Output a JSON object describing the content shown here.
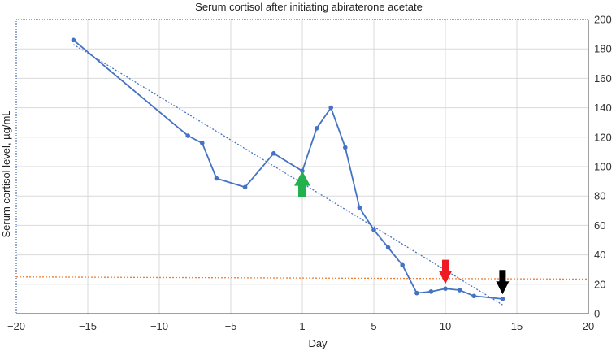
{
  "chart_data": {
    "type": "line",
    "title": "Serum cortisol after initiating abiraterone acetate",
    "xlabel": "Day",
    "ylabel": "Serum cortisol level, µg/mL",
    "xlim": [
      -20,
      20
    ],
    "ylim": [
      0,
      200
    ],
    "x_ticks": [
      "−20",
      "−15",
      "−10",
      "−5",
      "1",
      "5",
      "10",
      "15",
      "20"
    ],
    "y_ticks": [
      "0",
      "20",
      "40",
      "60",
      "80",
      "100",
      "120",
      "140",
      "160",
      "180",
      "200"
    ],
    "y_axis_side": "right",
    "grid": true,
    "series": [
      {
        "color": "#4472c4",
        "points": [
          {
            "x": -16,
            "y": 186
          },
          {
            "x": -8,
            "y": 121
          },
          {
            "x": -7,
            "y": 116
          },
          {
            "x": -6,
            "y": 92
          },
          {
            "x": -4,
            "y": 86
          },
          {
            "x": -2,
            "y": 109
          },
          {
            "x": 0,
            "y": 97
          },
          {
            "x": 1,
            "y": 126
          },
          {
            "x": 2,
            "y": 140
          },
          {
            "x": 3,
            "y": 113
          },
          {
            "x": 4,
            "y": 72
          },
          {
            "x": 5,
            "y": 57
          },
          {
            "x": 6,
            "y": 45
          },
          {
            "x": 7,
            "y": 33
          },
          {
            "x": 8,
            "y": 14
          },
          {
            "x": 9,
            "y": 15
          },
          {
            "x": 10,
            "y": 17
          },
          {
            "x": 11,
            "y": 16
          },
          {
            "x": 12,
            "y": 12
          },
          {
            "x": 14,
            "y": 10
          }
        ]
      }
    ],
    "trendline": {
      "style": "dotted",
      "color": "#4472c4",
      "from": {
        "x": -16,
        "y": 183
      },
      "to": {
        "x": 14,
        "y": 6
      }
    },
    "reference_line": {
      "style": "dotted",
      "color": "#ed7d31",
      "y_start": 25,
      "y_end": 23.5
    },
    "annotations": [
      {
        "type": "arrow-up",
        "color": "#22b14c",
        "x": 0,
        "y": 98
      },
      {
        "type": "arrow-down",
        "color": "#ed1c24",
        "x": 10,
        "y": 19
      },
      {
        "type": "arrow-down",
        "color": "#000000",
        "x": 14,
        "y": 12
      }
    ]
  }
}
